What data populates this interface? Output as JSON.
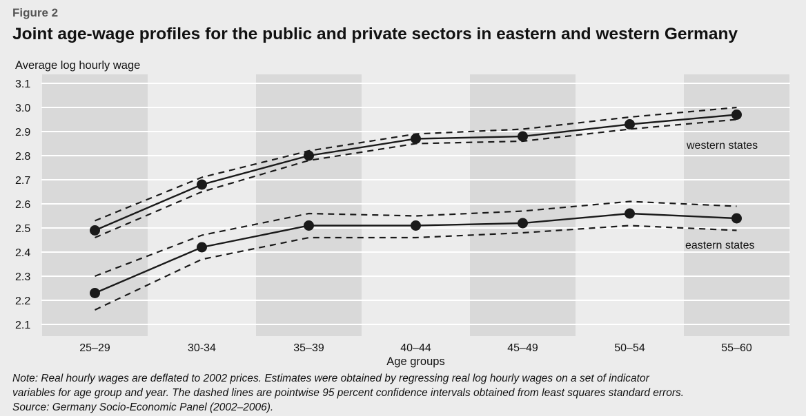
{
  "figure_label": "Figure 2",
  "title": "Joint age-wage profiles for the public and private sectors in eastern and western Germany",
  "note_lines": [
    "Note: Real hourly wages are deflated to 2002 prices. Estimates were obtained by regressing real log hourly wages on a set of indicator",
    "variables for age group and year. The dashed lines are pointwise 95 percent confidence intervals obtained from least squares standard errors.",
    "Source: Germany Socio-Economic Panel (2002–2006)."
  ],
  "colors": {
    "background": "#ececec",
    "band": "#d9d9d9",
    "grid": "#ffffff",
    "line": "#1a1a1a"
  },
  "chart_data": {
    "type": "line",
    "title": "Joint age-wage profiles for the public and private sectors in eastern and western Germany",
    "xlabel": "Age groups",
    "ylabel": "Average log hourly wage",
    "categories": [
      "25–29",
      "30-34",
      "35–39",
      "40–44",
      "45–49",
      "50–54",
      "55–60"
    ],
    "ylim": [
      2.05,
      3.15
    ],
    "yticks": [
      "3.1",
      "3.0",
      "2.9",
      "2.8",
      "2.7",
      "2.6",
      "2.5",
      "2.4",
      "2.3",
      "2.2",
      "2.1"
    ],
    "grid": true,
    "series": [
      {
        "name": "western states",
        "values": [
          2.49,
          2.68,
          2.8,
          2.87,
          2.88,
          2.93,
          2.97
        ],
        "upper": [
          2.53,
          2.71,
          2.82,
          2.89,
          2.91,
          2.96,
          3.0
        ],
        "lower": [
          2.46,
          2.65,
          2.78,
          2.85,
          2.86,
          2.91,
          2.95
        ]
      },
      {
        "name": "eastern states",
        "values": [
          2.23,
          2.42,
          2.51,
          2.51,
          2.52,
          2.56,
          2.54
        ],
        "upper": [
          2.3,
          2.47,
          2.56,
          2.55,
          2.57,
          2.61,
          2.59
        ],
        "lower": [
          2.16,
          2.37,
          2.46,
          2.46,
          2.48,
          2.51,
          2.49
        ]
      }
    ]
  }
}
